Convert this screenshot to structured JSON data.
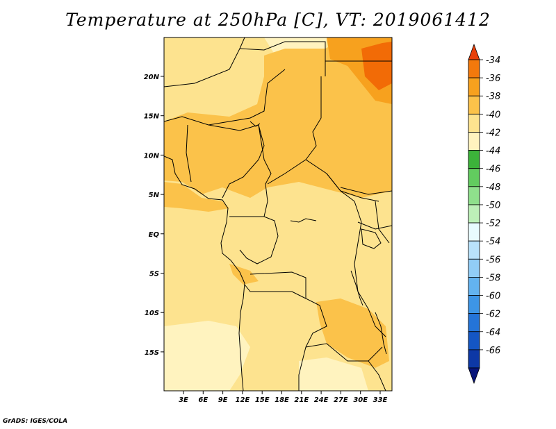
{
  "title": "Temperature at 250hPa [C], VT: 2019061412",
  "credit": "GrADS: IGES/COLA",
  "map": {
    "lat_ticks": [
      "20N",
      "15N",
      "10N",
      "5N",
      "EQ",
      "5S",
      "10S",
      "15S"
    ],
    "lon_ticks": [
      "3E",
      "6E",
      "9E",
      "12E",
      "15E",
      "18E",
      "21E",
      "24E",
      "27E",
      "30E",
      "33E"
    ],
    "fill_colors": {
      "lt_-42": "#fff3bf",
      "-42_-40": "#fde38f",
      "-40_-38": "#fbc24a",
      "-38_-36": "#f7a11e",
      "-36_-34": "#f26b06"
    }
  },
  "colorbar": {
    "labels": [
      "-34",
      "-36",
      "-38",
      "-40",
      "-42",
      "-44",
      "-46",
      "-48",
      "-50",
      "-52",
      "-54",
      "-56",
      "-58",
      "-60",
      "-62",
      "-64",
      "-66"
    ],
    "colors": [
      "#e8400a",
      "#f3790c",
      "#f7a11e",
      "#fbc24a",
      "#fde38f",
      "#fff3bf",
      "#3cb33a",
      "#62cc5f",
      "#8fe08c",
      "#bdf0b8",
      "#e8fbfe",
      "#b9e2fb",
      "#91cdf6",
      "#63b3f0",
      "#3d95e6",
      "#2474d8",
      "#1456c4",
      "#0d38a6",
      "#08157a"
    ]
  }
}
